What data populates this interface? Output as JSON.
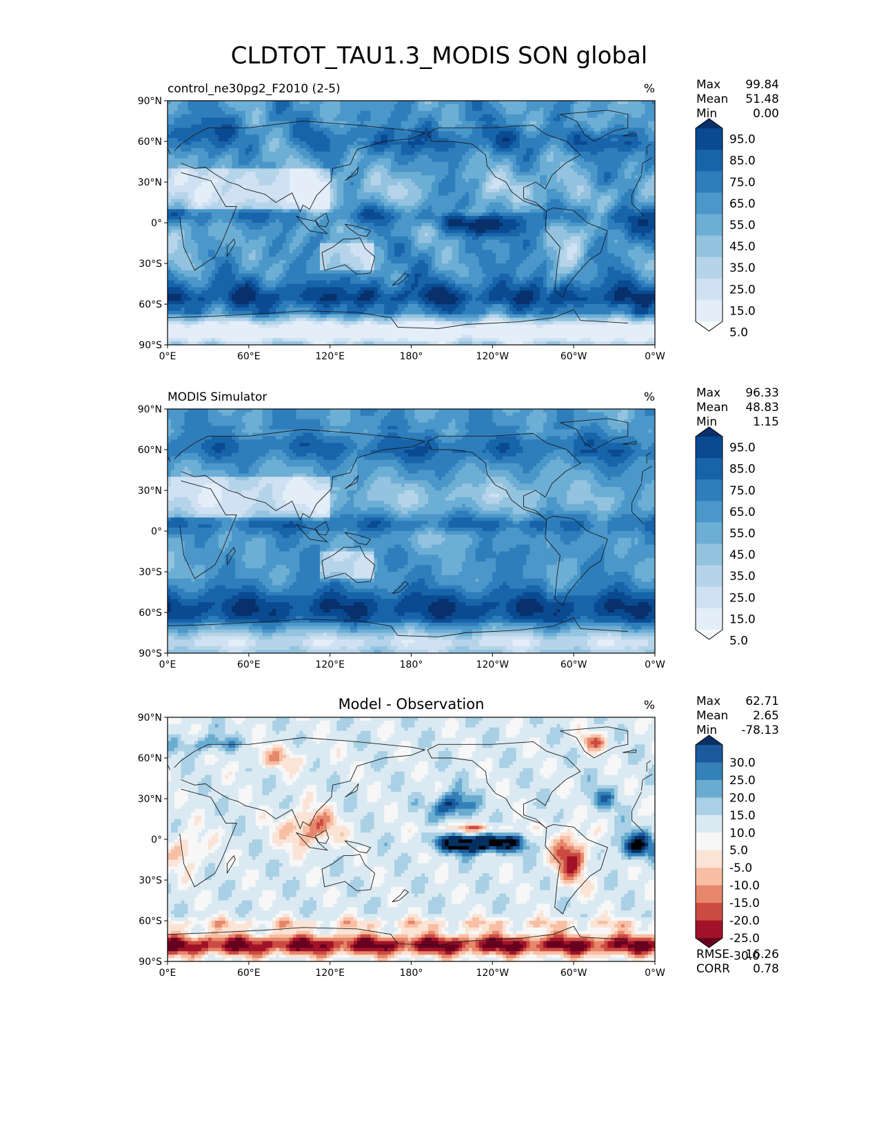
{
  "title": "CLDTOT_TAU1.3_MODIS SON global",
  "colors": {
    "blues": [
      "#f7fbff",
      "#e3eef9",
      "#cfe1f2",
      "#b5d4e9",
      "#93c3df",
      "#6daed5",
      "#4b97c9",
      "#2f7ebc",
      "#1864aa",
      "#0a4a90",
      "#08306b"
    ],
    "rdbu": [
      "#67001f",
      "#a11228",
      "#cb4b43",
      "#e6866a",
      "#f8bfa4",
      "#fbe3d5",
      "#f7f7f7",
      "#dbeaf2",
      "#a9d0e5",
      "#6aacd0",
      "#3480b9",
      "#1b5a9d",
      "#053061"
    ],
    "coast": "#1a1a1a"
  },
  "chart_data": [
    {
      "type": "heatmap",
      "title": "control_ne30pg2_F2010 (2-5)",
      "units": "%",
      "field": "model",
      "lat_ticks": [
        "90°N",
        "60°N",
        "30°N",
        "0°",
        "30°S",
        "60°S",
        "90°S"
      ],
      "lon_ticks": [
        "0°E",
        "60°E",
        "120°E",
        "180°",
        "120°W",
        "60°W",
        "0°W"
      ],
      "stats": {
        "Max": "99.84",
        "Mean": "51.48",
        "Min": "0.00"
      },
      "colorbar": {
        "extend": "both",
        "levels": [
          0,
          10,
          20,
          30,
          40,
          50,
          60,
          70,
          80,
          90,
          100
        ],
        "labels": [
          "95.0",
          "85.0",
          "75.0",
          "65.0",
          "55.0",
          "45.0",
          "35.0",
          "25.0",
          "15.0",
          "5.0"
        ]
      }
    },
    {
      "type": "heatmap",
      "title": "MODIS Simulator",
      "units": "%",
      "field": "obs",
      "lat_ticks": [
        "90°N",
        "60°N",
        "30°N",
        "0°",
        "30°S",
        "60°S",
        "90°S"
      ],
      "lon_ticks": [
        "0°E",
        "60°E",
        "120°E",
        "180°",
        "120°W",
        "60°W",
        "0°W"
      ],
      "stats": {
        "Max": "96.33",
        "Mean": "48.83",
        "Min": "1.15"
      },
      "colorbar": {
        "extend": "both",
        "levels": [
          0,
          10,
          20,
          30,
          40,
          50,
          60,
          70,
          80,
          90,
          100
        ],
        "labels": [
          "95.0",
          "85.0",
          "75.0",
          "65.0",
          "55.0",
          "45.0",
          "35.0",
          "25.0",
          "15.0",
          "5.0"
        ]
      }
    },
    {
      "type": "heatmap",
      "title": "Model - Observation",
      "units": "%",
      "field": "diff",
      "lat_ticks": [
        "90°N",
        "60°N",
        "30°N",
        "0°",
        "30°S",
        "60°S",
        "90°S"
      ],
      "lon_ticks": [
        "0°E",
        "60°E",
        "120°E",
        "180°",
        "120°W",
        "60°W",
        "0°W"
      ],
      "stats": {
        "Max": "62.71",
        "Mean": "2.65",
        "Min": "-78.13"
      },
      "extra_stats": {
        "RMSE": "16.26",
        "CORR": "0.78"
      },
      "colorbar": {
        "extend": "both",
        "levels": [
          -35,
          -30,
          -25,
          -20,
          -15,
          -10,
          -5,
          5,
          10,
          15,
          20,
          25,
          30,
          35
        ],
        "labels": [
          "30.0",
          "25.0",
          "20.0",
          "15.0",
          "10.0",
          "5.0",
          "-5.0",
          "-10.0",
          "-15.0",
          "-20.0",
          "-25.0",
          "-30.0"
        ]
      }
    }
  ]
}
